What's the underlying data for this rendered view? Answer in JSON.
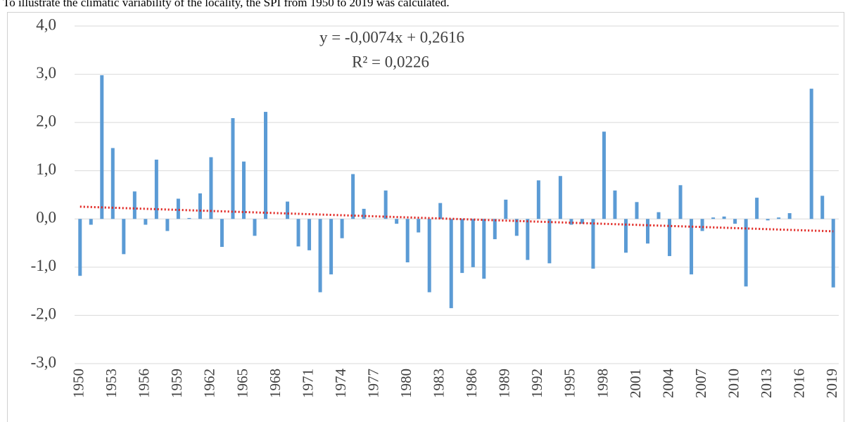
{
  "caption": "To illustrate the climatic variability of the locality, the SPI from 1950 to 2019 was calculated.",
  "chart_data": {
    "type": "bar",
    "categories": [
      "1950",
      null,
      null,
      "1953",
      null,
      null,
      "1956",
      null,
      null,
      "1959",
      null,
      null,
      "1962",
      null,
      null,
      "1965",
      null,
      null,
      "1968",
      null,
      null,
      "1971",
      null,
      null,
      "1974",
      null,
      null,
      "1977",
      null,
      null,
      "1980",
      null,
      null,
      "1983",
      null,
      null,
      "1986",
      null,
      null,
      "1989",
      null,
      null,
      "1992",
      null,
      null,
      "1995",
      null,
      null,
      "1998",
      null,
      null,
      "2001",
      null,
      null,
      "2004",
      null,
      null,
      "2007",
      null,
      null,
      "2010",
      null,
      null,
      "2013",
      null,
      null,
      "2016",
      null,
      null,
      "2019"
    ],
    "values": [
      -1.18,
      -0.12,
      2.98,
      1.47,
      -0.73,
      0.57,
      -0.12,
      1.23,
      -0.25,
      0.42,
      0.02,
      0.53,
      1.28,
      -0.58,
      2.09,
      1.19,
      -0.35,
      2.22,
      0,
      0.36,
      -0.57,
      -0.65,
      -1.52,
      -1.15,
      -0.4,
      0.93,
      0.21,
      0,
      0.59,
      -0.1,
      -0.9,
      -0.28,
      -1.52,
      0.33,
      -1.85,
      -1.12,
      -1.0,
      -1.24,
      -0.42,
      0.4,
      -0.35,
      -0.85,
      0.8,
      -0.92,
      0.89,
      -0.12,
      -0.1,
      -1.03,
      1.81,
      0.59,
      -0.7,
      0.35,
      -0.51,
      0.14,
      -0.77,
      0.7,
      -1.15,
      -0.25,
      0.03,
      0.05,
      -0.1,
      -1.4,
      0.44,
      -0.03,
      0.03,
      0.12,
      0,
      2.7,
      0.48,
      -1.42
    ],
    "color": "#5b9bd5",
    "ylim": [
      -3,
      4
    ],
    "yticks": [
      {
        "value": -3,
        "label": "-3,0"
      },
      {
        "value": -2,
        "label": "-2,0"
      },
      {
        "value": -1,
        "label": "-1,0"
      },
      {
        "value": 0,
        "label": "0,0"
      },
      {
        "value": 1,
        "label": "1,0"
      },
      {
        "value": 2,
        "label": "2,0"
      },
      {
        "value": 3,
        "label": "3,0"
      },
      {
        "value": 4,
        "label": "4,0"
      }
    ],
    "grid": true,
    "trendline": {
      "equation": "y = -0,0074x  + 0,2616",
      "r2": "R² = 0,0226",
      "slope": -0.0074,
      "intercept": 0.2616,
      "color": "#e0201b"
    }
  }
}
